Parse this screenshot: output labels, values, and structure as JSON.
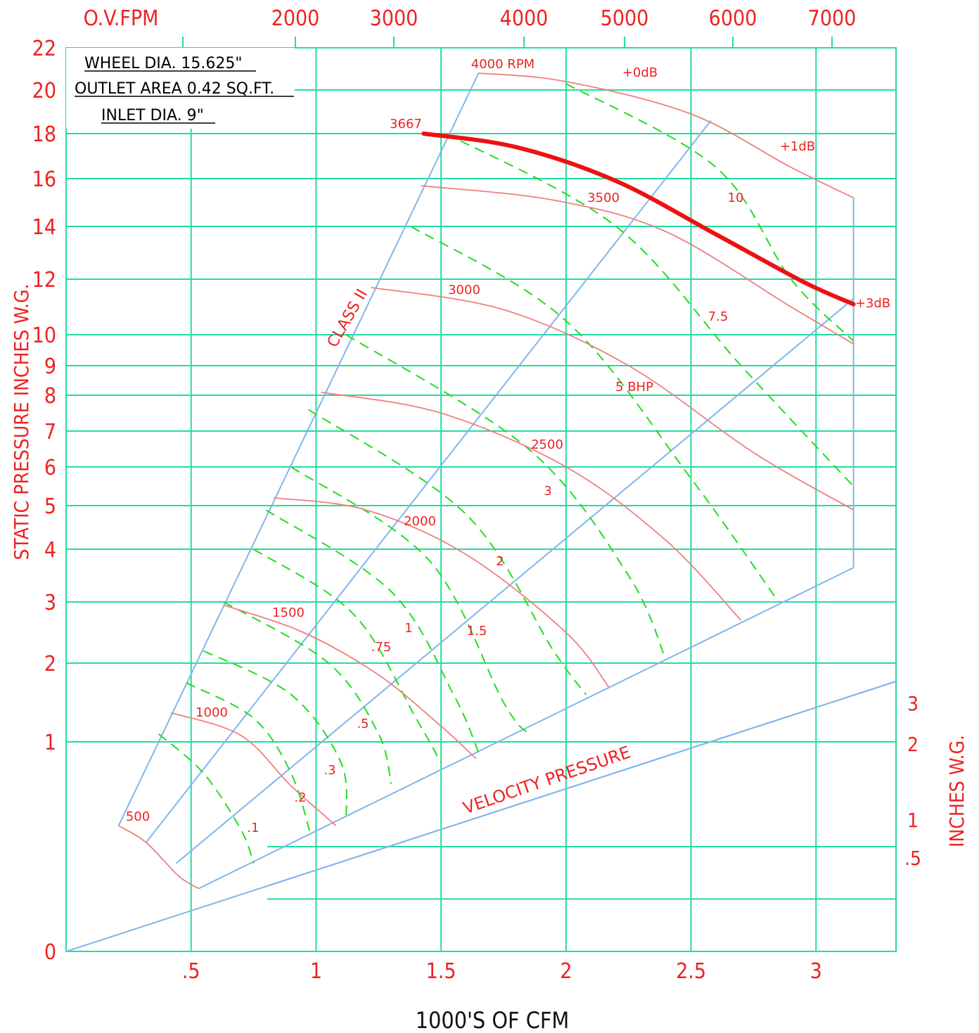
{
  "chart_data": {
    "type": "line",
    "info": [
      "WHEEL DIA. 15.625\"",
      "OUTLET AREA 0.42 SQ.FT.",
      "INLET DIA. 9\""
    ],
    "xlabel": "1000'S OF CFM",
    "ylabel": "STATIC PRESSURE INCHES W.G.",
    "top_axis_label": "O.V.FPM",
    "right_axis_label": "INCHES W.G.",
    "x_ticks": [
      ".5",
      "1",
      "1.5",
      "2",
      "2.5",
      "3"
    ],
    "y_ticks": [
      "0",
      "1",
      "2",
      "3",
      "4",
      "5",
      "6",
      "7",
      "8",
      "9",
      "10",
      "12",
      "14",
      "16",
      "18",
      "20",
      "22"
    ],
    "top_ticks": [
      "2000",
      "3000",
      "4000",
      "5000",
      "6000",
      "7000"
    ],
    "right_ticks": [
      ".5",
      "1",
      "2",
      "3"
    ],
    "class_label": "CLASS II",
    "velocity_label": "VELOCITY PRESSURE",
    "rpm_curves": [
      {
        "label": "4000 RPM",
        "points": [
          [
            1.65,
            20.8
          ],
          [
            2.0,
            20.4
          ],
          [
            2.5,
            18.9
          ],
          [
            2.9,
            16.5
          ],
          [
            3.15,
            15.2
          ]
        ]
      },
      {
        "label": "3500",
        "points": [
          [
            1.42,
            15.7
          ],
          [
            1.95,
            15.1
          ],
          [
            2.4,
            13.8
          ],
          [
            2.9,
            11.0
          ],
          [
            3.15,
            9.7
          ]
        ]
      },
      {
        "label": "3000",
        "points": [
          [
            1.22,
            11.7
          ],
          [
            1.75,
            10.9
          ],
          [
            2.25,
            9.0
          ],
          [
            2.75,
            6.4
          ],
          [
            3.15,
            4.9
          ]
        ]
      },
      {
        "label": "2500",
        "points": [
          [
            1.02,
            8.1
          ],
          [
            1.5,
            7.5
          ],
          [
            2.0,
            6.0
          ],
          [
            2.4,
            4.2
          ],
          [
            2.7,
            2.7
          ]
        ]
      },
      {
        "label": "2000",
        "points": [
          [
            0.83,
            5.2
          ],
          [
            1.2,
            4.9
          ],
          [
            1.6,
            3.9
          ],
          [
            2.0,
            2.5
          ],
          [
            2.17,
            1.7
          ]
        ]
      },
      {
        "label": "1500",
        "points": [
          [
            0.63,
            2.95
          ],
          [
            0.95,
            2.5
          ],
          [
            1.25,
            1.85
          ],
          [
            1.5,
            1.2
          ],
          [
            1.64,
            0.92
          ]
        ]
      },
      {
        "label": "1000",
        "points": [
          [
            0.42,
            1.37
          ],
          [
            0.7,
            1.08
          ],
          [
            0.9,
            0.79
          ],
          [
            1.08,
            0.6
          ]
        ]
      },
      {
        "label": "500",
        "points": [
          [
            0.21,
            0.6
          ],
          [
            0.32,
            0.52
          ],
          [
            0.45,
            0.36
          ],
          [
            0.53,
            0.3
          ]
        ]
      }
    ],
    "highlight_curve": {
      "label": "3667",
      "points": [
        [
          1.43,
          18.0
        ],
        [
          1.8,
          17.4
        ],
        [
          2.2,
          15.9
        ],
        [
          2.6,
          13.7
        ],
        [
          2.95,
          11.9
        ],
        [
          3.15,
          11.1
        ]
      ]
    },
    "bhp_lines": [
      {
        "label": ".1",
        "points": [
          [
            0.37,
            1.1
          ],
          [
            0.55,
            0.85
          ],
          [
            0.7,
            0.58
          ],
          [
            0.75,
            0.42
          ]
        ]
      },
      {
        "label": ".2",
        "points": [
          [
            0.48,
            1.75
          ],
          [
            0.75,
            1.3
          ],
          [
            0.9,
            0.85
          ],
          [
            0.98,
            0.55
          ]
        ]
      },
      {
        "label": ".3",
        "points": [
          [
            0.55,
            2.2
          ],
          [
            0.9,
            1.6
          ],
          [
            1.1,
            0.9
          ],
          [
            1.12,
            0.62
          ]
        ]
      },
      {
        "label": ".5",
        "points": [
          [
            0.63,
            3.0
          ],
          [
            1.05,
            2.0
          ],
          [
            1.25,
            1.1
          ],
          [
            1.3,
            0.8
          ]
        ]
      },
      {
        "label": ".75",
        "points": [
          [
            0.75,
            4.0
          ],
          [
            1.15,
            2.8
          ],
          [
            1.4,
            1.3
          ],
          [
            1.5,
            0.9
          ]
        ]
      },
      {
        "label": "1",
        "points": [
          [
            0.8,
            4.9
          ],
          [
            1.3,
            3.2
          ],
          [
            1.55,
            1.6
          ],
          [
            1.65,
            0.95
          ]
        ]
      },
      {
        "label": "1.5",
        "points": [
          [
            0.9,
            6.0
          ],
          [
            1.45,
            3.8
          ],
          [
            1.75,
            1.5
          ],
          [
            1.85,
            1.1
          ]
        ]
      },
      {
        "label": "2",
        "points": [
          [
            0.97,
            7.6
          ],
          [
            1.6,
            4.8
          ],
          [
            1.95,
            2.2
          ],
          [
            2.08,
            1.6
          ]
        ]
      },
      {
        "label": "3",
        "points": [
          [
            1.12,
            10.0
          ],
          [
            1.85,
            6.5
          ],
          [
            2.25,
            3.5
          ],
          [
            2.4,
            2.05
          ]
        ]
      },
      {
        "label": "5 BHP",
        "points": [
          [
            1.38,
            14.0
          ],
          [
            2.0,
            10.5
          ],
          [
            2.5,
            5.7
          ],
          [
            2.85,
            3.0
          ]
        ]
      },
      {
        "label": "7.5",
        "points": [
          [
            1.52,
            18.0
          ],
          [
            2.2,
            14.0
          ],
          [
            2.7,
            9.0
          ],
          [
            3.15,
            5.5
          ]
        ]
      },
      {
        "label": "10",
        "points": [
          [
            2.0,
            20.3
          ],
          [
            2.6,
            16.5
          ],
          [
            2.9,
            12.0
          ],
          [
            3.15,
            9.8
          ]
        ]
      }
    ],
    "system_lines": [
      {
        "label": "CLASS II",
        "points": [
          [
            0.21,
            0.6
          ],
          [
            1.65,
            20.8
          ]
        ]
      },
      {
        "points": [
          [
            0.32,
            0.52
          ],
          [
            2.58,
            18.6
          ]
        ]
      },
      {
        "points": [
          [
            0.44,
            0.42
          ],
          [
            3.15,
            11.3
          ]
        ]
      },
      {
        "points": [
          [
            0.53,
            0.3
          ],
          [
            3.15,
            3.65
          ]
        ]
      },
      {
        "label": "VELOCITY PRESSURE",
        "points": [
          [
            0.0,
            0.0
          ],
          [
            3.32,
            1.72
          ]
        ]
      }
    ],
    "db_labels": [
      {
        "text": "+0dB"
      },
      {
        "text": "+1dB"
      },
      {
        "text": "+3dB"
      }
    ],
    "grid": true,
    "xlim": [
      0,
      3.32
    ],
    "ylim": [
      0,
      22
    ]
  }
}
